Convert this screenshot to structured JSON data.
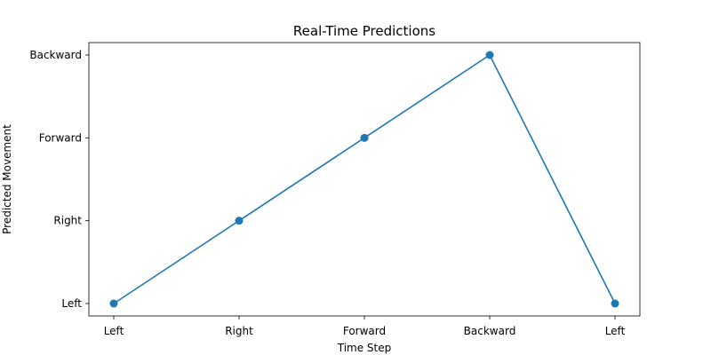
{
  "chart_data": {
    "type": "line",
    "title": "Real-Time Predictions",
    "xlabel": "Time Step",
    "ylabel": "Predicted Movement",
    "x_tick_labels": [
      "Left",
      "Right",
      "Forward",
      "Backward",
      "Left"
    ],
    "y_categories": [
      "Left",
      "Right",
      "Forward",
      "Backward"
    ],
    "series": [
      {
        "values": [
          "Left",
          "Right",
          "Forward",
          "Backward",
          "Left"
        ]
      }
    ],
    "marker": "circle",
    "grid": false,
    "colors": {
      "line": "#1f77b4",
      "marker": "#1f77b4",
      "axes": "#000000"
    }
  }
}
